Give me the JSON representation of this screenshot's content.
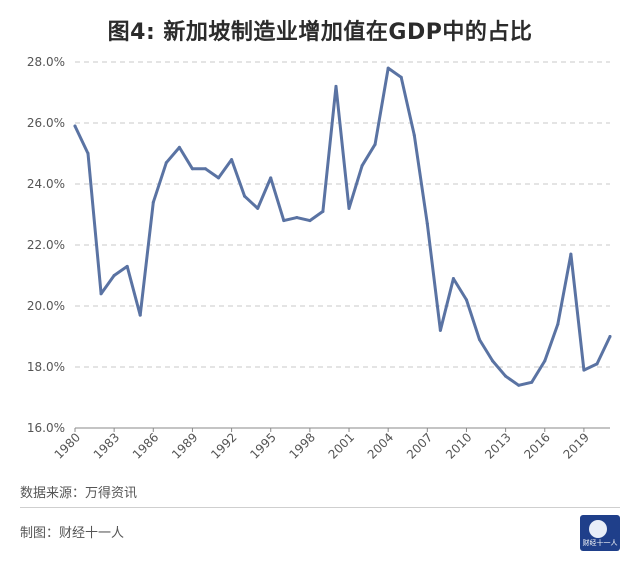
{
  "title": "图4: 新加坡制造业增加值在GDP中的占比",
  "source": "数据来源：万得资讯",
  "maker": "制图：财经十一人",
  "logo_text": "财经十一人",
  "colors": {
    "line": "#5a73a3",
    "grid": "#c8c8c8",
    "axis": "#8a8a8a",
    "text": "#555555"
  },
  "chart_data": {
    "type": "line",
    "title": "图4: 新加坡制造业增加值在GDP中的占比",
    "xlabel": "",
    "ylabel": "",
    "ylim": [
      16,
      28
    ],
    "yticks": [
      16,
      18,
      20,
      22,
      24,
      26,
      28
    ],
    "ytick_labels": [
      "16.0%",
      "18.0%",
      "20.0%",
      "22.0%",
      "24.0%",
      "26.0%",
      "28.0%"
    ],
    "xlim": [
      1980,
      2021
    ],
    "xticks": [
      "1980",
      "1983",
      "1986",
      "1989",
      "1992",
      "1995",
      "1998",
      "2001",
      "2004",
      "2007",
      "2010",
      "2013",
      "2016",
      "2019"
    ],
    "grid": "horizontal-dashed",
    "x": [
      1980,
      1981,
      1982,
      1983,
      1984,
      1985,
      1986,
      1987,
      1988,
      1989,
      1990,
      1991,
      1992,
      1993,
      1994,
      1995,
      1996,
      1997,
      1998,
      1999,
      2000,
      2001,
      2002,
      2003,
      2004,
      2005,
      2006,
      2007,
      2008,
      2009,
      2010,
      2011,
      2012,
      2013,
      2014,
      2015,
      2016,
      2017,
      2018,
      2019,
      2020,
      2021
    ],
    "series": [
      {
        "values": [
          25.9,
          25.0,
          20.4,
          21.0,
          21.3,
          19.7,
          23.4,
          24.7,
          25.2,
          24.5,
          24.5,
          24.2,
          24.8,
          23.6,
          23.2,
          24.2,
          22.8,
          22.9,
          22.8,
          23.1,
          27.2,
          23.2,
          24.6,
          25.3,
          27.8,
          27.5,
          25.6,
          22.7,
          19.2,
          20.9,
          20.2,
          18.9,
          18.2,
          17.7,
          17.4,
          17.5,
          18.2,
          19.4,
          21.7,
          17.9,
          18.1,
          19.0
        ]
      }
    ]
  }
}
